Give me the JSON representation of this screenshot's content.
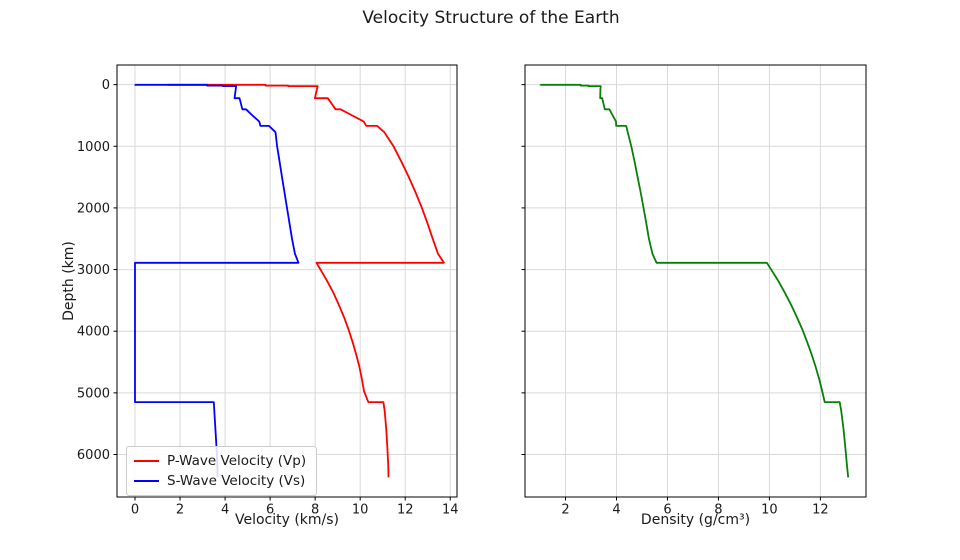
{
  "title": "Velocity Structure of the Earth",
  "chart_data": [
    {
      "type": "line",
      "xlabel": "Velocity (km/s)",
      "ylabel": "Depth (km)",
      "xlim": [
        -0.8,
        14.3
      ],
      "ylim": [
        -318.5,
        6689.5
      ],
      "y_axis_direction": "depth increases downward",
      "xticks": [
        0,
        2,
        4,
        6,
        8,
        10,
        12,
        14
      ],
      "yticks": [
        0,
        1000,
        2000,
        3000,
        4000,
        5000,
        6000
      ],
      "show_ytick_labels": true,
      "grid": true,
      "grid_color": "#d9d9d9",
      "legend_position": "lower left",
      "series": [
        {
          "name": "P-Wave Velocity (Vp)",
          "color": "#ff0000",
          "points": [
            [
              1.45,
              0
            ],
            [
              1.45,
              3
            ],
            [
              5.8,
              3
            ],
            [
              5.8,
              15
            ],
            [
              6.8,
              15
            ],
            [
              6.8,
              24.4
            ],
            [
              8.11,
              24.4
            ],
            [
              8.08,
              80
            ],
            [
              7.99,
              220
            ],
            [
              8.56,
              220
            ],
            [
              8.91,
              400
            ],
            [
              9.13,
              400
            ],
            [
              9.65,
              500
            ],
            [
              10.16,
              600
            ],
            [
              10.27,
              670
            ],
            [
              10.75,
              670
            ],
            [
              11.07,
              771
            ],
            [
              11.48,
              1000
            ],
            [
              11.83,
              1250
            ],
            [
              12.16,
              1500
            ],
            [
              12.46,
              1750
            ],
            [
              12.74,
              2000
            ],
            [
              12.99,
              2250
            ],
            [
              13.22,
              2500
            ],
            [
              13.45,
              2741
            ],
            [
              13.72,
              2891
            ],
            [
              8.06,
              2891
            ],
            [
              8.51,
              3171
            ],
            [
              8.8,
              3371
            ],
            [
              9.05,
              3571
            ],
            [
              9.28,
              3771
            ],
            [
              9.48,
              3971
            ],
            [
              9.66,
              4171
            ],
            [
              9.82,
              4371
            ],
            [
              9.96,
              4571
            ],
            [
              10.07,
              4771
            ],
            [
              10.17,
              4971
            ],
            [
              10.36,
              5149.5
            ],
            [
              11.03,
              5149.5
            ],
            [
              11.09,
              5300
            ],
            [
              11.16,
              5600
            ],
            [
              11.21,
              5900
            ],
            [
              11.25,
              6200
            ],
            [
              11.26,
              6371
            ]
          ]
        },
        {
          "name": "S-Wave Velocity (Vs)",
          "color": "#0000ff",
          "points": [
            [
              0,
              0
            ],
            [
              0,
              3
            ],
            [
              3.2,
              3
            ],
            [
              3.2,
              15
            ],
            [
              3.9,
              15
            ],
            [
              3.9,
              24.4
            ],
            [
              4.49,
              24.4
            ],
            [
              4.47,
              80
            ],
            [
              4.42,
              220
            ],
            [
              4.64,
              220
            ],
            [
              4.77,
              400
            ],
            [
              4.93,
              400
            ],
            [
              5.22,
              500
            ],
            [
              5.52,
              600
            ],
            [
              5.57,
              670
            ],
            [
              5.95,
              670
            ],
            [
              6.24,
              771
            ],
            [
              6.31,
              1000
            ],
            [
              6.42,
              1250
            ],
            [
              6.53,
              1500
            ],
            [
              6.64,
              1750
            ],
            [
              6.75,
              2000
            ],
            [
              6.86,
              2250
            ],
            [
              6.97,
              2500
            ],
            [
              7.1,
              2741
            ],
            [
              7.26,
              2891
            ],
            [
              0,
              2891
            ],
            [
              0,
              5149.5
            ],
            [
              3.5,
              5149.5
            ],
            [
              3.54,
              5400
            ],
            [
              3.6,
              5771
            ],
            [
              3.65,
              6100
            ],
            [
              3.67,
              6371
            ]
          ]
        }
      ]
    },
    {
      "type": "line",
      "xlabel": "Density (g/cm³)",
      "ylabel": "",
      "xlim": [
        0.41,
        13.79
      ],
      "ylim": [
        -318.5,
        6689.5
      ],
      "y_axis_direction": "depth increases downward",
      "xticks": [
        2,
        4,
        6,
        8,
        10,
        12
      ],
      "yticks": [
        0,
        1000,
        2000,
        3000,
        4000,
        5000,
        6000
      ],
      "show_ytick_labels": false,
      "grid": true,
      "grid_color": "#d9d9d9",
      "series": [
        {
          "name": "Density",
          "color": "#088008",
          "points": [
            [
              1.02,
              0
            ],
            [
              1.02,
              3
            ],
            [
              2.6,
              3
            ],
            [
              2.6,
              15
            ],
            [
              2.9,
              15
            ],
            [
              2.9,
              24.4
            ],
            [
              3.38,
              24.4
            ],
            [
              3.37,
              80
            ],
            [
              3.36,
              220
            ],
            [
              3.44,
              220
            ],
            [
              3.54,
              400
            ],
            [
              3.72,
              400
            ],
            [
              3.85,
              500
            ],
            [
              3.98,
              600
            ],
            [
              3.99,
              670
            ],
            [
              4.38,
              670
            ],
            [
              4.44,
              771
            ],
            [
              4.58,
              1000
            ],
            [
              4.71,
              1250
            ],
            [
              4.83,
              1500
            ],
            [
              4.95,
              1750
            ],
            [
              5.06,
              2000
            ],
            [
              5.17,
              2250
            ],
            [
              5.27,
              2500
            ],
            [
              5.41,
              2741
            ],
            [
              5.57,
              2891
            ],
            [
              9.9,
              2891
            ],
            [
              10.33,
              3171
            ],
            [
              10.6,
              3371
            ],
            [
              10.85,
              3571
            ],
            [
              11.08,
              3771
            ],
            [
              11.29,
              3971
            ],
            [
              11.48,
              4171
            ],
            [
              11.65,
              4371
            ],
            [
              11.81,
              4571
            ],
            [
              11.95,
              4771
            ],
            [
              12.07,
              4971
            ],
            [
              12.17,
              5149.5
            ],
            [
              12.76,
              5149.5
            ],
            [
              12.82,
              5300
            ],
            [
              12.91,
              5600
            ],
            [
              12.98,
              5900
            ],
            [
              13.05,
              6200
            ],
            [
              13.09,
              6371
            ]
          ]
        }
      ]
    }
  ]
}
